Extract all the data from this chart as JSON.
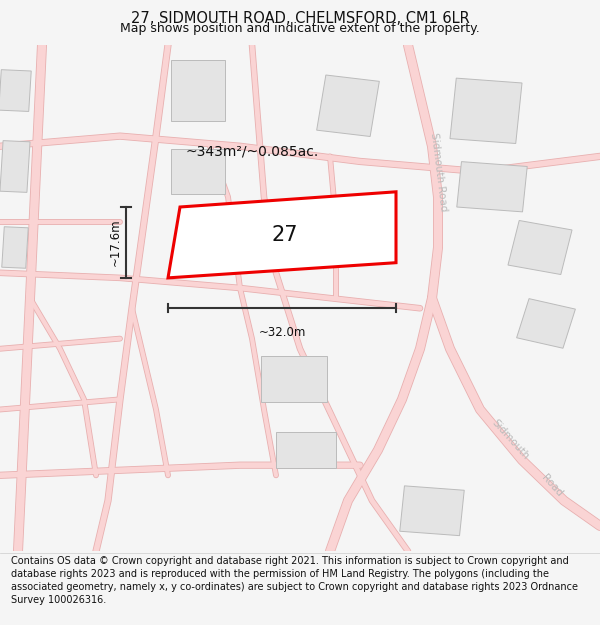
{
  "title": "27, SIDMOUTH ROAD, CHELMSFORD, CM1 6LR",
  "subtitle": "Map shows position and indicative extent of the property.",
  "footer": "Contains OS data © Crown copyright and database right 2021. This information is subject to Crown copyright and database rights 2023 and is reproduced with the permission of HM Land Registry. The polygons (including the associated geometry, namely x, y co-ordinates) are subject to Crown copyright and database rights 2023 Ordnance Survey 100026316.",
  "area_label": "~343m²/~0.085ac.",
  "number_label": "27",
  "width_label": "~32.0m",
  "height_label": "~17.6m",
  "bg_color": "#f5f5f5",
  "map_bg": "#ffffff",
  "road_fill": "#fad4d4",
  "road_edge": "#e8b0b0",
  "building_color": "#e4e4e4",
  "building_edge": "#bbbbbb",
  "highlight_color": "#ee0000",
  "highlight_fill": "#ffffff",
  "road_label_color": "#bbbbbb",
  "dim_color": "#333333",
  "text_color": "#111111",
  "title_fontsize": 10.5,
  "subtitle_fontsize": 9,
  "footer_fontsize": 7.0,
  "road_label_size": 7.5
}
